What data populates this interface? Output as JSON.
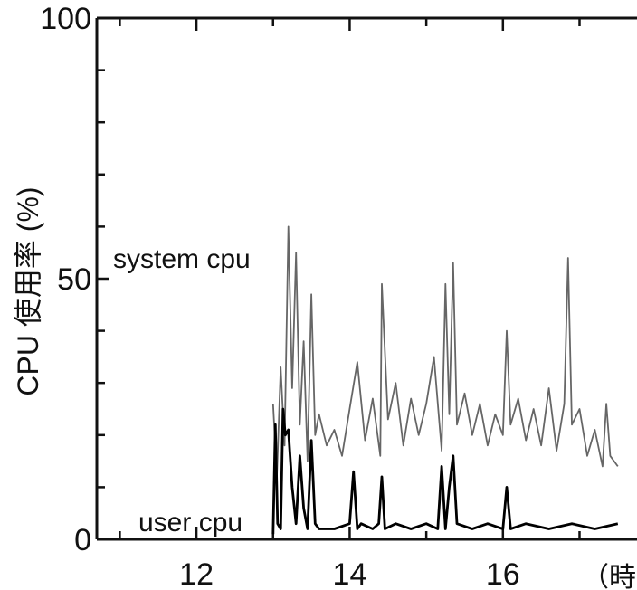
{
  "chart_data": {
    "type": "line",
    "title": "",
    "xlabel": "",
    "ylabel": "CPU 使用率 (%)",
    "x_unit_label": "（時）",
    "xlim": [
      10.7,
      17.75
    ],
    "ylim": [
      0,
      100
    ],
    "x_ticks": [
      12,
      14,
      16
    ],
    "y_ticks": [
      0,
      50,
      100
    ],
    "grid": false,
    "series": [
      {
        "name": "system cpu",
        "color": "#666666",
        "x": [
          13.0,
          13.05,
          13.1,
          13.15,
          13.2,
          13.25,
          13.3,
          13.35,
          13.4,
          13.45,
          13.5,
          13.55,
          13.6,
          13.7,
          13.8,
          13.9,
          14.0,
          14.1,
          14.2,
          14.3,
          14.4,
          14.42,
          14.5,
          14.6,
          14.7,
          14.8,
          14.9,
          15.0,
          15.1,
          15.2,
          15.25,
          15.3,
          15.35,
          15.4,
          15.5,
          15.6,
          15.7,
          15.8,
          15.9,
          16.0,
          16.05,
          16.1,
          16.2,
          16.3,
          16.4,
          16.5,
          16.6,
          16.7,
          16.8,
          16.85,
          16.9,
          17.0,
          17.1,
          17.2,
          17.3,
          17.35,
          17.4,
          17.5
        ],
        "values": [
          26,
          12,
          33,
          18,
          60,
          29,
          55,
          22,
          38,
          15,
          47,
          20,
          24,
          18,
          21,
          16,
          25,
          34,
          19,
          27,
          16,
          49,
          23,
          30,
          18,
          27,
          20,
          26,
          35,
          17,
          49,
          24,
          53,
          22,
          28,
          20,
          26,
          18,
          24,
          20,
          40,
          22,
          27,
          19,
          25,
          18,
          29,
          17,
          26,
          54,
          22,
          25,
          16,
          21,
          14,
          26,
          16,
          14
        ]
      },
      {
        "name": "user cpu",
        "color": "#000000",
        "x": [
          13.0,
          13.03,
          13.06,
          13.1,
          13.13,
          13.16,
          13.2,
          13.25,
          13.3,
          13.35,
          13.4,
          13.45,
          13.5,
          13.55,
          13.6,
          13.8,
          14.0,
          14.05,
          14.1,
          14.15,
          14.3,
          14.38,
          14.42,
          14.46,
          14.6,
          14.8,
          15.0,
          15.15,
          15.2,
          15.25,
          15.3,
          15.35,
          15.4,
          15.6,
          15.8,
          16.0,
          16.05,
          16.1,
          16.3,
          16.6,
          16.9,
          17.2,
          17.5
        ],
        "values": [
          1,
          22,
          3,
          2,
          25,
          20,
          21,
          10,
          3,
          16,
          6,
          2,
          19,
          3,
          2,
          2,
          3,
          13,
          2,
          3,
          2,
          3,
          12,
          2,
          3,
          2,
          3,
          2,
          14,
          2,
          10,
          16,
          3,
          2,
          3,
          2,
          10,
          2,
          3,
          2,
          3,
          2,
          3
        ]
      }
    ]
  }
}
